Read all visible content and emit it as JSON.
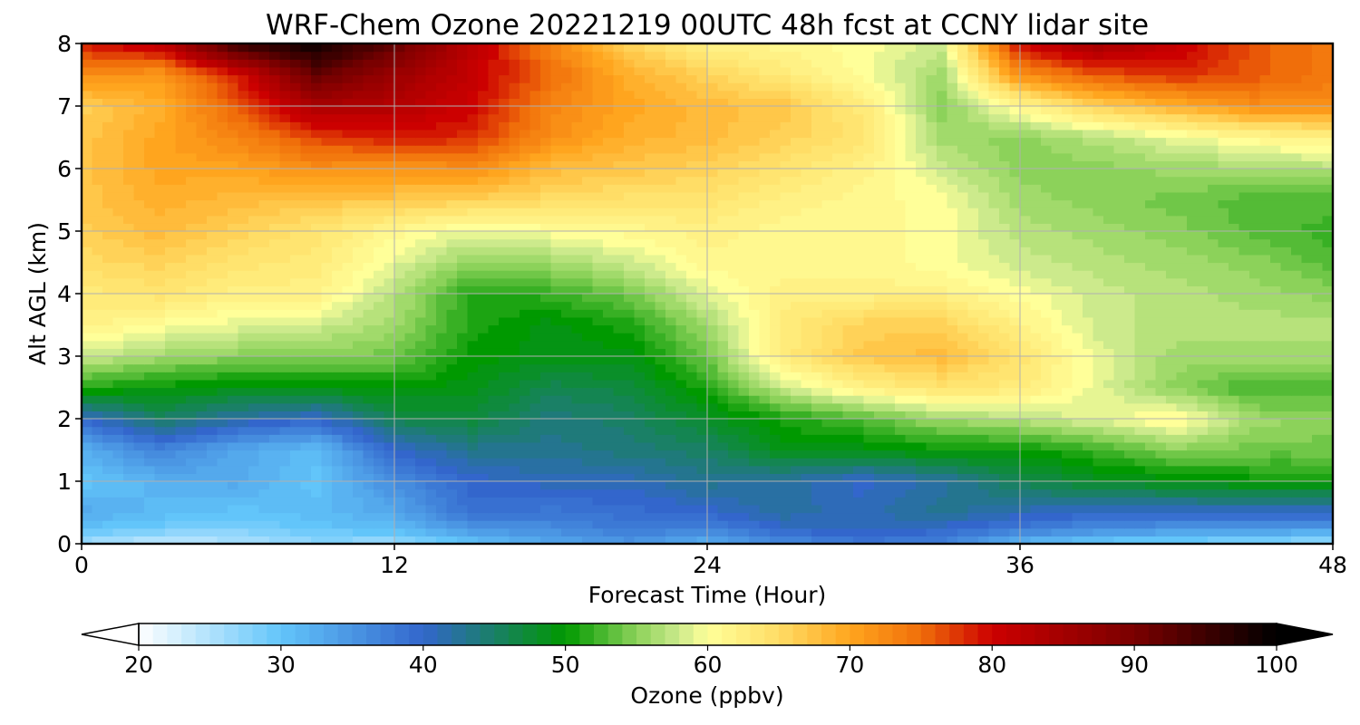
{
  "chart_data": {
    "type": "heatmap",
    "title": "WRF-Chem Ozone  20221219 00UTC 48h fcst at CCNY lidar site",
    "xlabel": "Forecast Time (Hour)",
    "ylabel": "Alt AGL (km)",
    "xlim": [
      0,
      48
    ],
    "ylim": [
      0,
      8
    ],
    "xticks": [
      "0",
      "12",
      "24",
      "36",
      "48"
    ],
    "yticks": [
      "0",
      "1",
      "2",
      "3",
      "4",
      "5",
      "6",
      "7",
      "8"
    ],
    "grid": true,
    "colorbar": {
      "label": "Ozone  (ppbv)",
      "orientation": "horizontal",
      "min": 20,
      "max": 100,
      "ticks": [
        "20",
        "30",
        "40",
        "50",
        "60",
        "70",
        "80",
        "90",
        "100"
      ],
      "extend": "both",
      "colors": [
        [
          20,
          "#ffffff"
        ],
        [
          30,
          "#62c5fa"
        ],
        [
          40,
          "#3366cc"
        ],
        [
          50,
          "#009900"
        ],
        [
          55,
          "#8cd25a"
        ],
        [
          58,
          "#ccea8c"
        ],
        [
          60,
          "#ffff99"
        ],
        [
          65,
          "#ffdd66"
        ],
        [
          70,
          "#ffa51e"
        ],
        [
          75,
          "#f06e0a"
        ],
        [
          80,
          "#cc0000"
        ],
        [
          90,
          "#7a0000"
        ],
        [
          100,
          "#000000"
        ]
      ]
    },
    "x": [
      0,
      3,
      6,
      9,
      12,
      15,
      18,
      21,
      24,
      27,
      30,
      33,
      36,
      39,
      42,
      45,
      48
    ],
    "y": [
      0,
      0.25,
      0.5,
      1,
      1.5,
      2,
      2.5,
      3,
      3.5,
      4,
      4.5,
      5,
      5.5,
      6,
      6.5,
      7,
      7.5,
      8
    ],
    "values": [
      [
        26,
        23,
        25,
        27,
        26,
        30,
        33,
        35,
        32,
        36,
        38,
        37,
        31,
        29,
        28,
        27,
        26
      ],
      [
        30,
        29,
        28,
        30,
        31,
        35,
        36,
        38,
        37,
        40,
        41,
        40,
        38,
        36,
        35,
        35,
        34
      ],
      [
        33,
        31,
        30,
        31,
        33,
        39,
        38,
        39,
        40,
        42,
        41,
        43,
        41,
        40,
        40,
        40,
        40
      ],
      [
        30,
        32,
        33,
        30,
        36,
        40,
        41,
        41,
        43,
        42,
        40,
        42,
        46,
        48,
        49,
        50,
        50
      ],
      [
        32,
        37,
        33,
        31,
        40,
        43,
        43,
        44,
        45,
        49,
        49,
        50,
        50,
        52,
        55,
        54,
        54
      ],
      [
        40,
        45,
        42,
        40,
        46,
        47,
        44,
        45,
        48,
        51,
        53,
        56,
        57,
        59,
        61,
        56,
        55
      ],
      [
        51,
        50,
        49,
        49,
        50,
        49,
        46,
        47,
        51,
        58,
        62,
        64,
        63,
        59,
        55,
        52,
        53
      ],
      [
        58,
        56,
        55,
        55,
        54,
        50,
        49,
        49,
        54,
        63,
        67,
        68,
        64,
        59,
        56,
        56,
        56
      ],
      [
        62,
        60,
        59,
        58,
        56,
        51,
        49,
        51,
        56,
        63,
        66,
        66,
        62,
        58,
        57,
        57,
        57
      ],
      [
        63,
        64,
        62,
        62,
        57,
        51,
        52,
        54,
        59,
        62,
        62,
        62,
        60,
        58,
        57,
        56,
        55
      ],
      [
        65,
        66,
        64,
        63,
        59,
        55,
        56,
        58,
        61,
        61,
        61,
        60,
        58,
        57,
        56,
        55,
        53
      ],
      [
        66,
        68,
        66,
        64,
        61,
        59,
        60,
        61,
        62,
        61,
        61,
        60,
        57,
        56,
        55,
        53,
        52
      ],
      [
        67,
        69,
        68,
        67,
        67,
        66,
        65,
        64,
        64,
        62,
        61,
        60,
        56,
        55,
        54,
        53,
        53
      ],
      [
        67,
        70,
        70,
        72,
        71,
        72,
        68,
        67,
        66,
        64,
        62,
        58,
        55,
        55,
        56,
        56,
        57
      ],
      [
        67,
        70,
        73,
        77,
        79,
        78,
        72,
        69,
        68,
        66,
        64,
        56,
        55,
        57,
        59,
        61,
        62
      ],
      [
        66,
        69,
        76,
        84,
        83,
        80,
        73,
        70,
        68,
        67,
        63,
        55,
        61,
        66,
        69,
        72,
        72
      ],
      [
        72,
        71,
        79,
        92,
        86,
        81,
        75,
        69,
        66,
        63,
        60,
        56,
        72,
        76,
        78,
        76,
        74
      ],
      [
        79,
        82,
        96,
        99,
        92,
        82,
        73,
        66,
        62,
        61,
        60,
        58,
        80,
        85,
        81,
        76,
        74
      ]
    ]
  }
}
